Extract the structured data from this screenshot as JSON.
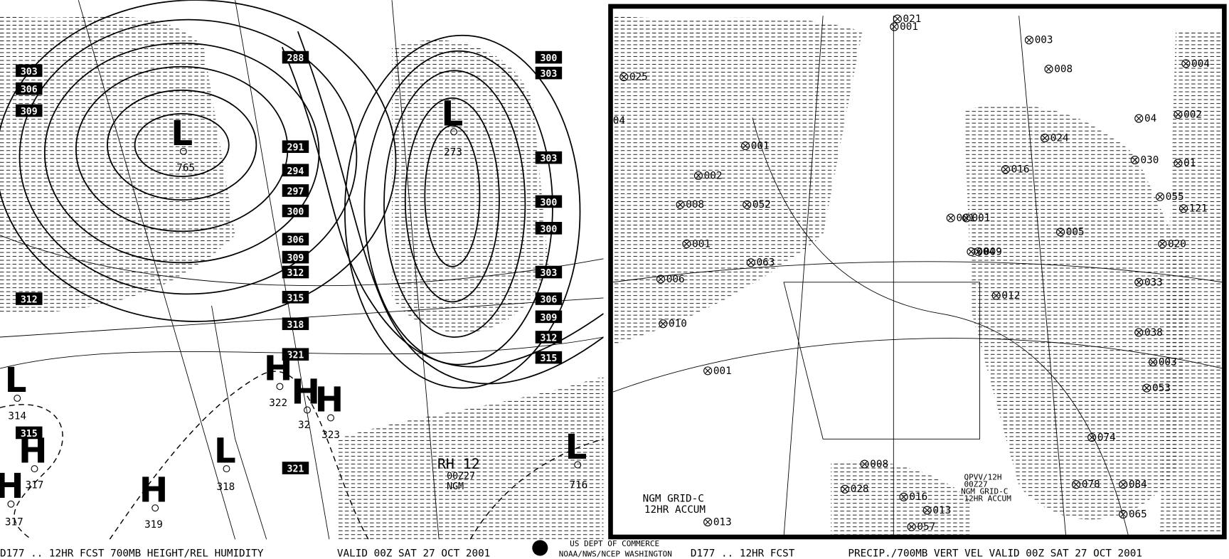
{
  "left_panel": {
    "height_labels": [
      "303",
      "306",
      "309",
      "312",
      "288",
      "291",
      "294",
      "297",
      "300",
      "306",
      "309",
      "312",
      "315",
      "318",
      "321",
      "321",
      "315",
      "300",
      "303",
      "303",
      "300",
      "300",
      "303",
      "306",
      "309",
      "312",
      "315"
    ],
    "centers": [
      {
        "symbol": "L",
        "value": "765"
      },
      {
        "symbol": "L",
        "value": "273"
      },
      {
        "symbol": "L",
        "value": "314"
      },
      {
        "symbol": "H",
        "value": "317"
      },
      {
        "symbol": "H",
        "value": "317"
      },
      {
        "symbol": "H",
        "value": "319"
      },
      {
        "symbol": "L",
        "value": "318"
      },
      {
        "symbol": "H",
        "value": "322"
      },
      {
        "symbol": "H",
        "value": "32"
      },
      {
        "symbol": "H",
        "value": "323"
      },
      {
        "symbol": "L",
        "value": "716"
      }
    ],
    "annotation": [
      "RH 12",
      "00Z27",
      "NGM"
    ]
  },
  "right_panel": {
    "precip_labels": [
      "021",
      "001",
      "003",
      "008",
      "004",
      "025",
      "04",
      "001",
      "002",
      "008",
      "052",
      "001",
      "063",
      "006",
      "010",
      "001",
      "004",
      "001",
      "024",
      "016",
      "030",
      "01",
      "055",
      "121",
      "001",
      "009",
      "005",
      "020",
      "012",
      "033",
      "038",
      "003",
      "053",
      "074",
      "084",
      "065",
      "078",
      "013",
      "028",
      "016",
      "008",
      "013",
      "057",
      "002",
      "04"
    ],
    "annotation_left": [
      "NGM GRID-C",
      "12HR ACCUM"
    ],
    "annotation_right": [
      "QPVV/12H",
      "00Z27",
      "NGM GRID-C",
      "12HR ACCUM"
    ]
  },
  "footer": {
    "left_title": "D177 .. 12HR FCST 700MB HEIGHT/REL HUMIDITY",
    "left_valid": "VALID 00Z SAT 27 OCT 2001",
    "agency_1": "US DEPT OF COMMERCE",
    "agency_2": "NOAA/NWS/NCEP WASHINGTON",
    "right_title": "D177 .. 12HR FCST",
    "right_valid": "PRECIP./700MB VERT VEL  VALID 00Z SAT 27 OCT 2001"
  }
}
